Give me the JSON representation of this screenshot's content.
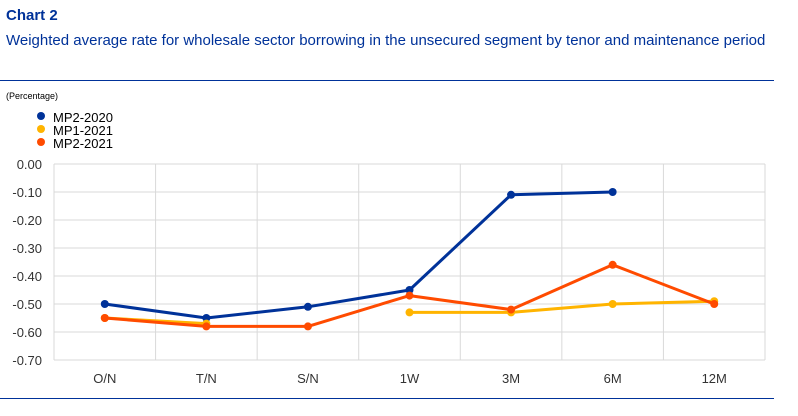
{
  "header": {
    "chart_label": "Chart 2",
    "subtitle": "Weighted average rate for wholesale sector borrowing in the unsecured segment by tenor and maintenance period"
  },
  "chart_data": {
    "type": "line",
    "title": "Weighted average rate for wholesale sector borrowing in the unsecured segment by tenor and maintenance period",
    "unit_label": "(Percentage)",
    "categories": [
      "O/N",
      "T/N",
      "S/N",
      "1W",
      "3M",
      "6M",
      "12M"
    ],
    "yticks": [
      "0.00",
      "-0.10",
      "-0.20",
      "-0.30",
      "-0.40",
      "-0.50",
      "-0.60",
      "-0.70"
    ],
    "ylim": [
      -0.7,
      0.0
    ],
    "grid": true,
    "legend_position": "top-left",
    "series": [
      {
        "name": "MP2-2020",
        "color": "#003299",
        "values": [
          -0.5,
          -0.55,
          -0.51,
          -0.45,
          -0.11,
          -0.1,
          null
        ]
      },
      {
        "name": "MP1-2021",
        "color": "#FFB400",
        "values": [
          -0.55,
          -0.57,
          null,
          -0.53,
          -0.53,
          -0.5,
          -0.49
        ]
      },
      {
        "name": "MP2-2021",
        "color": "#FF4B00",
        "values": [
          -0.55,
          -0.58,
          -0.58,
          -0.47,
          -0.52,
          -0.36,
          -0.5
        ]
      }
    ]
  }
}
